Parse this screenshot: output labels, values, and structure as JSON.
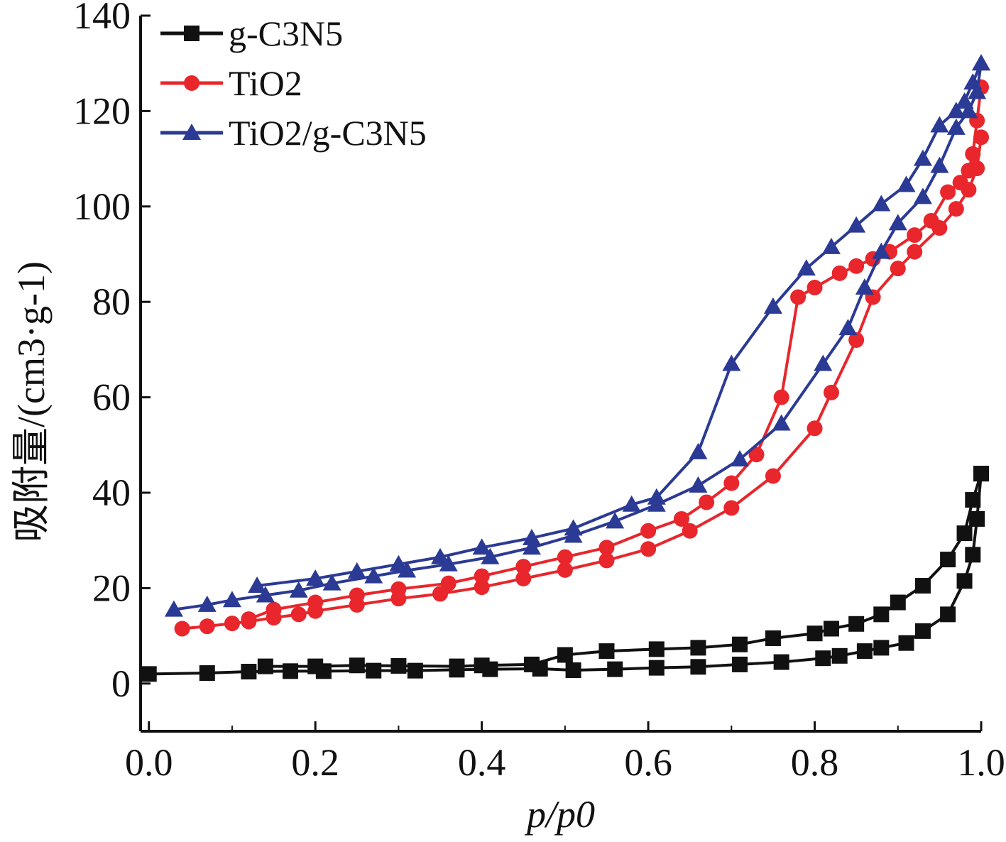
{
  "chart_data": {
    "type": "line",
    "title": "",
    "xlabel": "p/p0",
    "ylabel": "吸附量/(cm3·g-1)",
    "xlim": [
      -0.01,
      1.0
    ],
    "ylim": [
      -10,
      140
    ],
    "x_ticks": [
      "0.0",
      "0.2",
      "0.4",
      "0.6",
      "0.8",
      "1.0"
    ],
    "y_ticks": [
      "0",
      "20",
      "40",
      "60",
      "80",
      "100",
      "120",
      "140"
    ],
    "x_tick_values": [
      0.0,
      0.2,
      0.4,
      0.6,
      0.8,
      1.0
    ],
    "y_tick_values": [
      0,
      20,
      40,
      60,
      80,
      100,
      120,
      140
    ],
    "grid": false,
    "legend_position": "top-left",
    "series": [
      {
        "name": "g-C3N5",
        "color": "#111111",
        "marker": "square",
        "adsorption": {
          "x": [
            0.0,
            0.07,
            0.12,
            0.17,
            0.21,
            0.27,
            0.32,
            0.37,
            0.41,
            0.47,
            0.51,
            0.56,
            0.61,
            0.66,
            0.71,
            0.76,
            0.81,
            0.83,
            0.86,
            0.88,
            0.91,
            0.93,
            0.96,
            0.98,
            0.99,
            0.995,
            1.0
          ],
          "y": [
            2.0,
            2.2,
            2.5,
            2.6,
            2.6,
            2.7,
            2.7,
            2.9,
            3.0,
            3.1,
            2.8,
            3.0,
            3.3,
            3.5,
            4.0,
            4.5,
            5.3,
            5.8,
            6.8,
            7.5,
            8.5,
            11.0,
            14.5,
            21.5,
            27.0,
            34.5,
            44.0
          ]
        },
        "desorption": {
          "x": [
            1.0,
            0.99,
            0.98,
            0.96,
            0.93,
            0.9,
            0.88,
            0.85,
            0.82,
            0.8,
            0.75,
            0.71,
            0.66,
            0.61,
            0.55,
            0.5,
            0.46,
            0.4,
            0.37,
            0.3,
            0.25,
            0.2,
            0.14
          ],
          "y": [
            44.0,
            38.5,
            31.5,
            26.0,
            20.5,
            17.0,
            14.5,
            12.5,
            11.5,
            10.5,
            9.5,
            8.2,
            7.5,
            7.2,
            6.8,
            6.0,
            4.0,
            3.8,
            3.6,
            3.7,
            3.8,
            3.6,
            3.6
          ]
        }
      },
      {
        "name": "TiO2",
        "color": "#e8262c",
        "marker": "circle",
        "adsorption": {
          "x": [
            0.04,
            0.07,
            0.1,
            0.12,
            0.15,
            0.18,
            0.2,
            0.25,
            0.3,
            0.35,
            0.4,
            0.45,
            0.5,
            0.55,
            0.6,
            0.65,
            0.7,
            0.75,
            0.8,
            0.82,
            0.85,
            0.87,
            0.9,
            0.92,
            0.95,
            0.97,
            0.985,
            0.995,
            1.0
          ],
          "y": [
            11.5,
            12.0,
            12.6,
            13.0,
            13.8,
            14.5,
            15.2,
            16.5,
            17.8,
            18.8,
            20.2,
            22.0,
            23.8,
            25.8,
            28.2,
            32.0,
            36.8,
            43.5,
            53.5,
            61.0,
            72.0,
            81.0,
            87.0,
            90.5,
            95.5,
            99.5,
            103.5,
            108.0,
            114.5
          ]
        },
        "desorption": {
          "x": [
            1.0,
            0.995,
            0.99,
            0.985,
            0.975,
            0.96,
            0.94,
            0.92,
            0.89,
            0.87,
            0.85,
            0.83,
            0.8,
            0.78,
            0.76,
            0.73,
            0.7,
            0.67,
            0.64,
            0.6,
            0.55,
            0.5,
            0.45,
            0.4,
            0.36,
            0.3,
            0.25,
            0.2,
            0.15,
            0.12
          ],
          "y": [
            125.0,
            118.0,
            111.0,
            107.5,
            105.0,
            103.0,
            97.0,
            94.0,
            90.5,
            89.0,
            87.5,
            86.0,
            83.0,
            81.0,
            60.0,
            48.0,
            42.0,
            38.0,
            34.5,
            32.0,
            28.5,
            26.5,
            24.5,
            22.5,
            21.0,
            19.8,
            18.5,
            17.0,
            15.5,
            13.5
          ]
        }
      },
      {
        "name": "TiO2/g-C3N5",
        "color": "#2b3a94",
        "marker": "triangle",
        "adsorption": {
          "x": [
            0.03,
            0.07,
            0.1,
            0.14,
            0.18,
            0.22,
            0.27,
            0.31,
            0.36,
            0.41,
            0.46,
            0.51,
            0.56,
            0.61,
            0.66,
            0.71,
            0.76,
            0.81,
            0.84,
            0.86,
            0.88,
            0.9,
            0.93,
            0.95,
            0.97,
            0.985,
            0.995,
            1.0
          ],
          "y": [
            15.5,
            16.5,
            17.5,
            18.5,
            19.5,
            21.0,
            22.5,
            23.7,
            25.0,
            26.5,
            28.5,
            31.0,
            34.0,
            37.5,
            41.5,
            47.0,
            54.5,
            67.0,
            74.5,
            83.0,
            90.5,
            96.5,
            102.0,
            108.5,
            116.5,
            120.0,
            124.0,
            130.0
          ]
        },
        "desorption": {
          "x": [
            1.0,
            0.99,
            0.98,
            0.97,
            0.95,
            0.93,
            0.91,
            0.88,
            0.85,
            0.82,
            0.79,
            0.75,
            0.7,
            0.66,
            0.61,
            0.58,
            0.51,
            0.46,
            0.4,
            0.35,
            0.3,
            0.25,
            0.2,
            0.13
          ],
          "y": [
            130.0,
            126.0,
            122.0,
            120.0,
            117.0,
            110.0,
            104.5,
            100.5,
            96.0,
            91.5,
            87.0,
            79.0,
            67.0,
            48.5,
            39.0,
            37.5,
            32.5,
            30.5,
            28.5,
            26.5,
            25.0,
            23.5,
            22.0,
            20.5
          ]
        }
      }
    ]
  }
}
